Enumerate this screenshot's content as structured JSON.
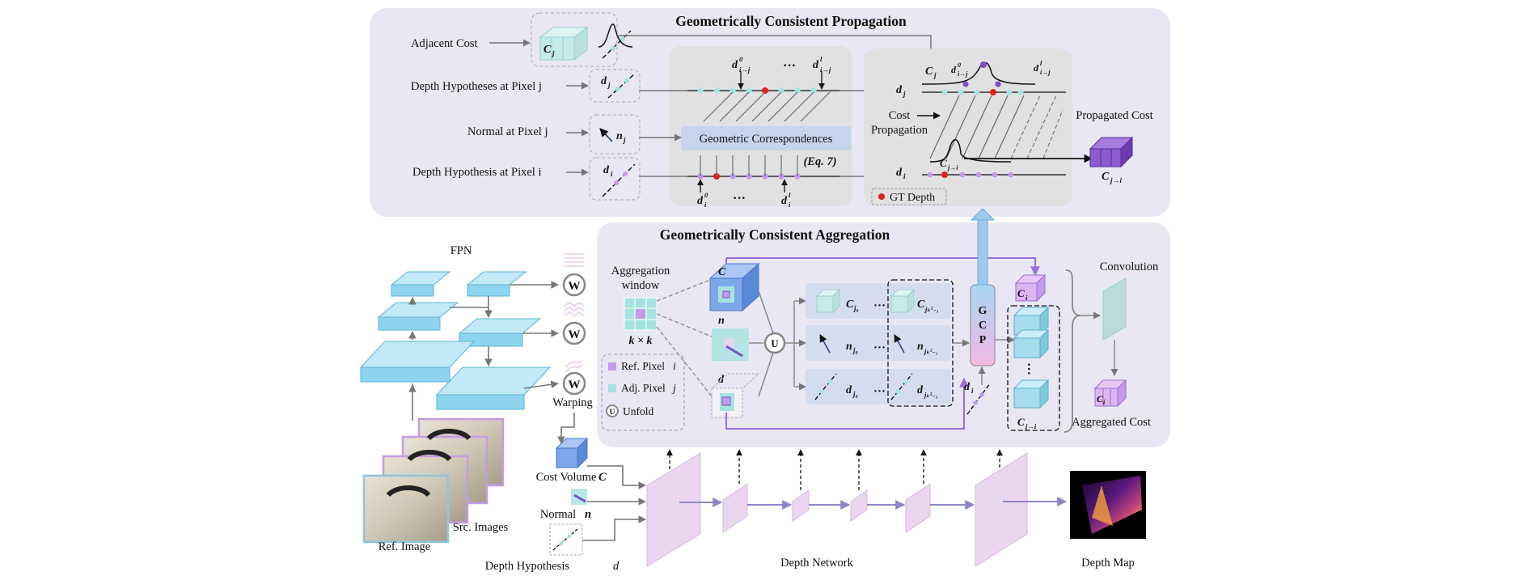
{
  "propagation": {
    "title": "Geometrically Consistent Propagation",
    "row_labels": [
      "Adjacent Cost",
      "Depth Hypotheses at Pixel  j",
      "Normal at Pixel  j",
      "Depth Hypothesis at Pixel  i"
    ],
    "sym_cj": "C",
    "sym_cj_sub": "j",
    "sym_dj": "d",
    "sym_dj_sub": "j",
    "sym_nj": "n",
    "sym_nj_sub": "j",
    "sym_di": "d",
    "sym_di_sub": "i",
    "d0_ij": "d",
    "d0_ij_sup": "0",
    "d0_ij_sub": "i→j",
    "dl_ij": "d",
    "dl_ij_sup": "l",
    "dl_ij_sub": "i→j",
    "d0_i": "d",
    "d0_i_sup": "0",
    "d0_i_sub": "i",
    "dl_i": "d",
    "dl_i_sup": "l",
    "dl_i_sub": "i",
    "dots": "···",
    "geo_corr": "Geometric Correspondences",
    "eq": "(Eq. 7)",
    "cost_prop": [
      "Cost",
      "Propagation"
    ],
    "gt_depth": "GT Depth",
    "propagated_cost": "Propagated Cost",
    "c_j_to_i": "C",
    "c_j_to_i_sub": "j→i"
  },
  "aggregation": {
    "title": "Geometrically Consistent Aggregation",
    "agg_window": [
      "Aggregation",
      "window"
    ],
    "k_by_k": "k × k",
    "cube_c": "C",
    "cube_n": "n",
    "cube_d": "d",
    "unfold_symbol": "U",
    "legend": [
      {
        "label": "Ref. Pixel",
        "sym": "i",
        "color": "#c49be6"
      },
      {
        "label": "Adj. Pixel",
        "sym": "j",
        "color": "#a6e3e0"
      },
      {
        "label": "Unfold",
        "sym": "",
        "color": "#ffffff"
      }
    ],
    "c_j0": "C",
    "c_j0_sub": "j₀",
    "c_jk": "C",
    "c_jk_sub": "jₖ²₋₁",
    "n_j0": "n",
    "n_j0_sub": "j₀",
    "n_jk": "n",
    "n_jk_sub": "jₖ²₋₁",
    "d_j0": "d",
    "d_j0_sub": "j₀",
    "d_jk": "d",
    "d_jk_sub": "jₖ²₋₁",
    "gcp": [
      "G",
      "C",
      "P"
    ],
    "d_i": "d",
    "d_i_sub": "i",
    "c_i": "C",
    "c_i_sub": "i",
    "c_ji": "C",
    "c_ji_sub": "j→i",
    "convolution": "Convolution",
    "c_i_prime": "C",
    "c_i_prime_sub": "i",
    "aggregated_cost": "Aggregated Cost"
  },
  "left": {
    "fpn": "FPN",
    "warp_symbol": "W",
    "warping": "Warping",
    "src_images": "Src. Images",
    "ref_image": "Ref. Image",
    "cost_volume": "Cost Volume",
    "cost_volume_sym": "C",
    "normal": "Normal",
    "normal_sym": "n",
    "depth_hyp": "Depth Hypothesis",
    "depth_hyp_sym": "d"
  },
  "bottom": {
    "depth_network": "Depth Network",
    "depth_map": "Depth Map"
  },
  "colors": {
    "panel": "#e9e7f4",
    "inner_panel": "#e1e1e1",
    "teal": "#bfe8e6",
    "purple": "#9b6fd6",
    "lavender": "#e7d4ee",
    "blue": "#93d3ec",
    "red": "#e02020"
  }
}
